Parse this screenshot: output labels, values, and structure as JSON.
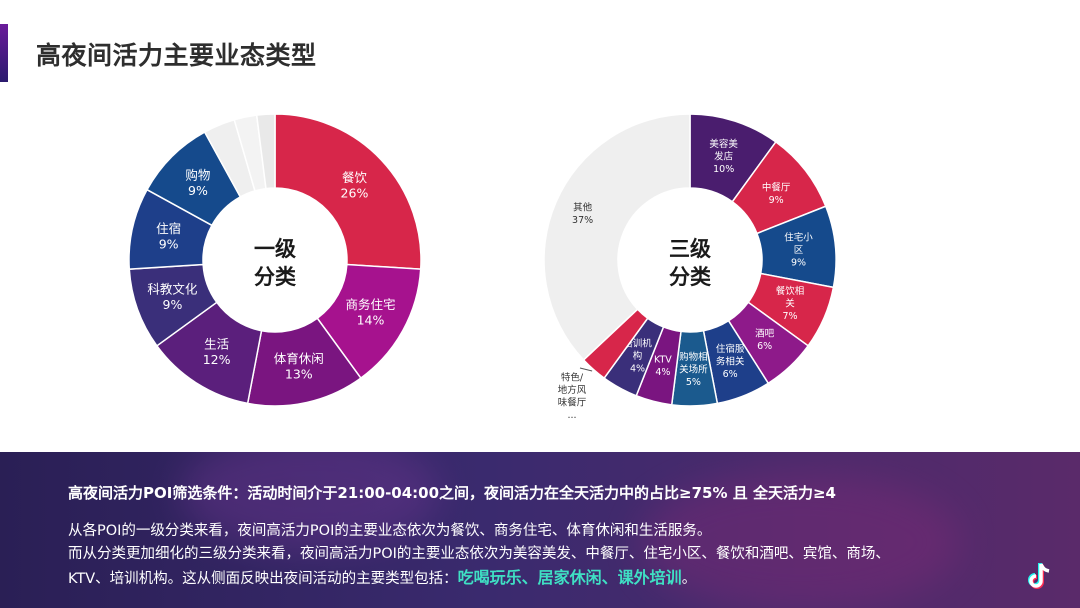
{
  "header": {
    "title": "高夜间活力主要业态类型"
  },
  "chart_data": [
    {
      "type": "pie",
      "center_label": [
        "一级",
        "分类"
      ],
      "slices": [
        {
          "name": "餐饮",
          "value": 26,
          "label": "26%",
          "color": "#d7264a"
        },
        {
          "name": "商务住宅",
          "value": 14,
          "label": "14%",
          "color": "#a6128e"
        },
        {
          "name": "体育休闲",
          "value": 13,
          "label": "13%",
          "color": "#7a1580"
        },
        {
          "name": "生活",
          "value": 12,
          "label": "12%",
          "color": "#5b1f7c"
        },
        {
          "name": "科教文化",
          "value": 9,
          "label": "9%",
          "color": "#3a2f7a"
        },
        {
          "name": "住宿",
          "value": 9,
          "label": "9%",
          "color": "#1e3f8a"
        },
        {
          "name": "购物",
          "value": 9,
          "label": "9%",
          "color": "#154a8c"
        },
        {
          "name": "",
          "value": 3.5,
          "label": "",
          "color": "#efefef"
        },
        {
          "name": "",
          "value": 2.5,
          "label": "",
          "color": "#f3f3f3"
        },
        {
          "name": "",
          "value": 2,
          "label": "",
          "color": "#e9e9e9"
        }
      ]
    },
    {
      "type": "pie",
      "center_label": [
        "三级",
        "分类"
      ],
      "slices": [
        {
          "name": "美容美发店",
          "value": 10,
          "label": "10%",
          "color": "#4a1d6e"
        },
        {
          "name": "中餐厅",
          "value": 9,
          "label": "9%",
          "color": "#d7264a"
        },
        {
          "name": "住宅小区",
          "value": 9,
          "label": "9%",
          "color": "#154a8c"
        },
        {
          "name": "餐饮相关",
          "value": 7,
          "label": "7%",
          "color": "#d7264a"
        },
        {
          "name": "酒吧",
          "value": 6,
          "label": "6%",
          "color": "#8e1a8a"
        },
        {
          "name": "住宿服务相关",
          "value": 6,
          "label": "6%",
          "color": "#1e3f8a"
        },
        {
          "name": "购物相关场所",
          "value": 5,
          "label": "5%",
          "color": "#1b5a8e"
        },
        {
          "name": "KTV",
          "value": 4,
          "label": "4%",
          "color": "#7a1580"
        },
        {
          "name": "培训机构",
          "value": 4,
          "label": "4%",
          "color": "#3a2f7a"
        },
        {
          "name": "特色/地方风味餐厅...",
          "value": 3,
          "label": "",
          "color": "#d7264a"
        },
        {
          "name": "其他",
          "value": 37,
          "label": "37%",
          "color": "#efefef"
        }
      ]
    }
  ],
  "panel": {
    "condition": "高夜间活力POI筛选条件：活动时间介于21:00-04:00之间，夜间活力在全天活力中的占比≥75% 且 全天活力≥4",
    "line1": "从各POI的一级分类来看，夜间高活力POI的主要业态依次为餐饮、商务住宅、体育休闲和生活服务。",
    "line2": "而从分类更加细化的三级分类来看，夜间高活力POI的主要业态依次为美容美发、中餐厅、住宅小区、餐饮和酒吧、宾馆、商场、",
    "line3": "KTV、培训机构。这从侧面反映出夜间活动的主要类型包括：",
    "highlight": "吃喝玩乐、居家休闲、课外培训",
    "line3_end": "。"
  },
  "logo": {
    "icon": "music-note-icon"
  }
}
